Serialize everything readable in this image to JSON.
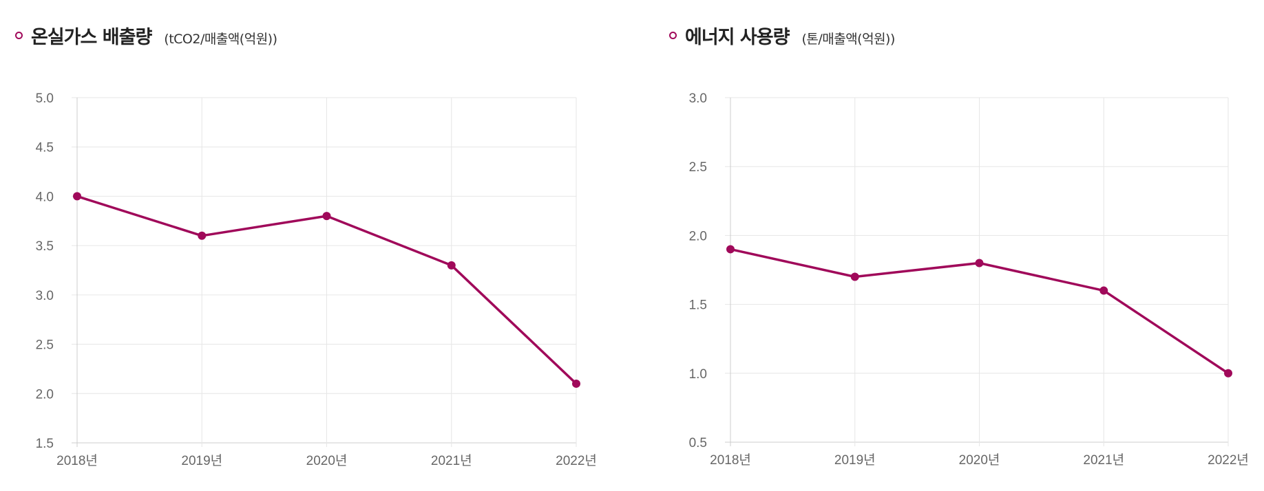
{
  "chart_data": [
    {
      "type": "line",
      "title": "온실가스 배출량",
      "unit": "(tCO2/매출액(억원))",
      "categories": [
        "2018년",
        "2019년",
        "2020년",
        "2021년",
        "2022년"
      ],
      "values": [
        4.0,
        3.6,
        3.8,
        3.3,
        2.1
      ],
      "ylim": [
        1.5,
        5.0
      ],
      "yticks": [
        "1.5",
        "2.0",
        "2.5",
        "3.0",
        "3.5",
        "4.0",
        "4.5",
        "5.0"
      ],
      "grid": true,
      "color": "#a0095a"
    },
    {
      "type": "line",
      "title": "에너지 사용량",
      "unit": "(톤/매출액(억원))",
      "categories": [
        "2018년",
        "2019년",
        "2020년",
        "2021년",
        "2022년"
      ],
      "values": [
        1.9,
        1.7,
        1.8,
        1.6,
        1.0
      ],
      "ylim": [
        0.5,
        3.0
      ],
      "yticks": [
        "0.5",
        "1.0",
        "1.5",
        "2.0",
        "2.5",
        "3.0"
      ],
      "grid": true,
      "color": "#a0095a"
    }
  ]
}
